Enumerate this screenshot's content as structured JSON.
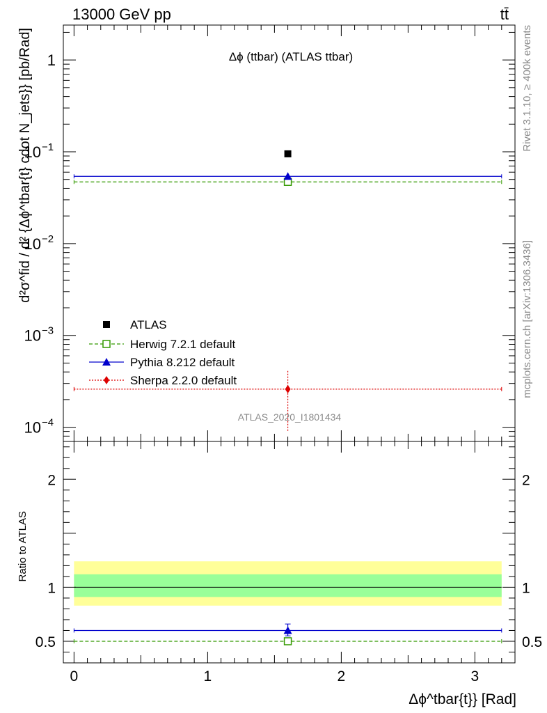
{
  "header": {
    "left": "13000 GeV pp",
    "right": "tt̄"
  },
  "side": {
    "top": "Rivet 3.1.10, ≥ 400k events",
    "bottom": "mcplots.cern.ch [arXiv:1306.3436]"
  },
  "chart_data": {
    "type": "scatter",
    "title": "Δϕ (ttbar) (ATLAS ttbar)",
    "watermark": "ATLAS_2020_I1801434",
    "ylabel_main": "d²σ^fid / d² {Δϕ^tbar{t} cdot N_jets}} [pb/Rad]",
    "ylabel_ratio": "Ratio to ATLAS",
    "xlabel": "Δϕ^tbar{t}} [Rad]",
    "x_range": [
      -0.08,
      3.3
    ],
    "y_range_main": [
      7e-05,
      2.4
    ],
    "y_scale_main": "log",
    "y_range_ratio": [
      0.3,
      2.35
    ],
    "x_ticks": [
      {
        "value": 0,
        "label": "0"
      },
      {
        "value": 1,
        "label": "1"
      },
      {
        "value": 2,
        "label": "2"
      },
      {
        "value": 3,
        "label": "3"
      }
    ],
    "y_ticks_main": [
      {
        "value": 1,
        "base": "1",
        "exp": ""
      },
      {
        "value": 0.1,
        "base": "10",
        "exp": "−1"
      },
      {
        "value": 0.01,
        "base": "10",
        "exp": "−2"
      },
      {
        "value": 0.001,
        "base": "10",
        "exp": "−3"
      },
      {
        "value": 0.0001,
        "base": "10",
        "exp": "−4"
      }
    ],
    "y_ticks_ratio": [
      {
        "value": 0.5,
        "label": "0.5"
      },
      {
        "value": 1,
        "label": "1"
      },
      {
        "value": 2,
        "label": "2"
      }
    ],
    "bin": {
      "low": 0,
      "high": 3.2,
      "center": 1.6
    },
    "data": {
      "name": "ATLAS",
      "x": 1.6,
      "y": 0.095
    },
    "bands": {
      "inner": [
        0.91,
        1.12
      ],
      "outer": [
        0.83,
        1.24
      ]
    },
    "series": [
      {
        "name": "Herwig 7.2.1 default",
        "color": "#339900",
        "marker": "open-square",
        "style": "dashed",
        "y": 0.047,
        "yerr": [
          0.044,
          0.05
        ],
        "ratio": 0.5,
        "ratio_err": [
          0.48,
          0.52
        ]
      },
      {
        "name": "Pythia 8.212 default",
        "color": "#0000cc",
        "marker": "triangle",
        "style": "solid",
        "y": 0.054,
        "yerr": [
          0.05,
          0.058
        ],
        "ratio": 0.6,
        "ratio_err": [
          0.55,
          0.66
        ]
      },
      {
        "name": "Sherpa 2.2.0 default",
        "color": "#dd0000",
        "marker": "diamond",
        "style": "dotted",
        "y": 0.00026,
        "yerr": [
          9e-05,
          0.00041
        ],
        "ratio": null,
        "ratio_err": null
      }
    ]
  }
}
